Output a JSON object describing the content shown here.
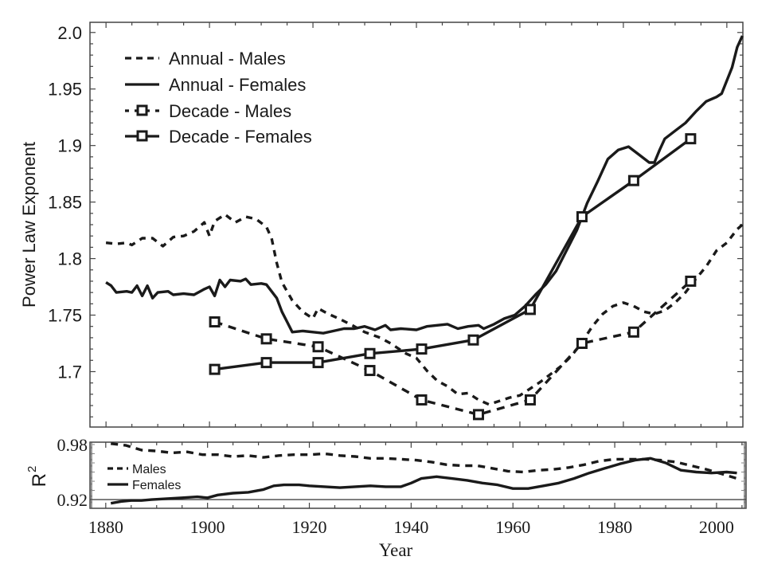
{
  "chart_data": [
    {
      "type": "line",
      "title": "",
      "xlabel": "",
      "ylabel": "Power Law Exponent",
      "xlim": [
        1876.9,
        2003.1
      ],
      "ylim": [
        1.651,
        2.009
      ],
      "xticks": [
        1880,
        1900,
        1920,
        1940,
        1960,
        1980,
        2000
      ],
      "yticks": [
        1.7,
        1.75,
        1.8,
        1.85,
        1.9,
        1.95,
        2.0
      ],
      "ytick_labels": [
        "1.7",
        "1.75",
        "1.8",
        "1.85",
        "1.9",
        "1.95",
        "2.0"
      ],
      "grid": false,
      "legend_position": "top-left",
      "series": [
        {
          "name": "Annual - Males",
          "style": "dashed",
          "marker": "none",
          "x": [
            1880,
            1882,
            1884,
            1885,
            1887,
            1889,
            1891,
            1893,
            1895,
            1897,
            1899,
            1900,
            1901,
            1903,
            1905,
            1907,
            1909,
            1911,
            1912,
            1913,
            1914,
            1916,
            1918,
            1920,
            1921,
            1923,
            1925,
            1928,
            1930,
            1933,
            1935,
            1938,
            1940,
            1942,
            1944,
            1946,
            1948,
            1950,
            1952,
            1954,
            1956,
            1958,
            1960,
            1962,
            1964,
            1966,
            1968,
            1970,
            1972,
            1974,
            1976,
            1978,
            1980,
            1982,
            1984,
            1986,
            1988,
            1990,
            1992,
            1994,
            1996,
            1998,
            2000,
            2002,
            2003
          ],
          "y": [
            1.814,
            1.813,
            1.814,
            1.812,
            1.818,
            1.818,
            1.811,
            1.819,
            1.82,
            1.824,
            1.832,
            1.82,
            1.833,
            1.839,
            1.832,
            1.837,
            1.835,
            1.828,
            1.818,
            1.796,
            1.779,
            1.763,
            1.753,
            1.747,
            1.756,
            1.751,
            1.747,
            1.74,
            1.735,
            1.73,
            1.725,
            1.716,
            1.712,
            1.701,
            1.692,
            1.687,
            1.68,
            1.681,
            1.675,
            1.671,
            1.674,
            1.677,
            1.679,
            1.685,
            1.691,
            1.698,
            1.705,
            1.714,
            1.726,
            1.74,
            1.751,
            1.758,
            1.761,
            1.758,
            1.753,
            1.751,
            1.754,
            1.761,
            1.77,
            1.782,
            1.793,
            1.807,
            1.814,
            1.826,
            1.83
          ]
        },
        {
          "name": "Annual - Females",
          "style": "solid",
          "marker": "none",
          "x": [
            1880,
            1881,
            1882,
            1884,
            1885,
            1886,
            1887,
            1888,
            1889,
            1890,
            1892,
            1893,
            1895,
            1897,
            1899,
            1900,
            1901,
            1902,
            1903,
            1904,
            1906,
            1907,
            1908,
            1910,
            1911,
            1912,
            1913,
            1914,
            1915,
            1916,
            1918,
            1920,
            1922,
            1924,
            1926,
            1928,
            1930,
            1932,
            1934,
            1935,
            1937,
            1940,
            1942,
            1944,
            1946,
            1948,
            1950,
            1952,
            1953,
            1955,
            1957,
            1959,
            1961,
            1963,
            1965,
            1967,
            1969,
            1971,
            1972,
            1973,
            1975,
            1977,
            1979,
            1981,
            1983,
            1985,
            1986,
            1987,
            1988,
            1990,
            1992,
            1994,
            1996,
            1998,
            1999,
            2001,
            2002,
            2003
          ],
          "y": [
            1.779,
            1.776,
            1.77,
            1.771,
            1.77,
            1.776,
            1.767,
            1.776,
            1.765,
            1.77,
            1.771,
            1.768,
            1.769,
            1.768,
            1.773,
            1.775,
            1.767,
            1.781,
            1.775,
            1.781,
            1.78,
            1.782,
            1.777,
            1.778,
            1.777,
            1.771,
            1.765,
            1.753,
            1.744,
            1.735,
            1.736,
            1.735,
            1.734,
            1.736,
            1.738,
            1.738,
            1.74,
            1.737,
            1.741,
            1.737,
            1.738,
            1.737,
            1.74,
            1.741,
            1.742,
            1.738,
            1.74,
            1.741,
            1.738,
            1.742,
            1.747,
            1.75,
            1.758,
            1.768,
            1.777,
            1.789,
            1.807,
            1.825,
            1.837,
            1.849,
            1.868,
            1.888,
            1.896,
            1.899,
            1.892,
            1.885,
            1.885,
            1.896,
            1.906,
            1.913,
            1.92,
            1.93,
            1.939,
            1.943,
            1.946,
            1.969,
            1.987,
            1.997
          ]
        },
        {
          "name": "Decade - Males",
          "style": "dashed",
          "marker": "square",
          "x": [
            1901,
            1911,
            1921,
            1931,
            1941,
            1952,
            1962,
            1972,
            1982,
            1993
          ],
          "y": [
            1.744,
            1.729,
            1.722,
            1.701,
            1.675,
            1.662,
            1.675,
            1.725,
            1.735,
            1.78
          ]
        },
        {
          "name": "Decade - Females",
          "style": "solid",
          "marker": "square",
          "x": [
            1901,
            1911,
            1921,
            1931,
            1941,
            1951,
            1962,
            1972,
            1982,
            1993
          ],
          "y": [
            1.702,
            1.708,
            1.708,
            1.716,
            1.72,
            1.728,
            1.755,
            1.837,
            1.869,
            1.906
          ]
        }
      ]
    },
    {
      "type": "line",
      "title": "",
      "xlabel": "Year",
      "ylabel": "R²",
      "ylabel_base": "R",
      "ylabel_sup": "2",
      "xlim": [
        1876.9,
        2005.8
      ],
      "ylim": [
        0.9105,
        0.9826
      ],
      "xticks": [
        1880,
        1900,
        1920,
        1940,
        1960,
        1980,
        2000
      ],
      "xtick_labels": [
        "1880",
        "1900",
        "1920",
        "1940",
        "1960",
        "1980",
        "2000"
      ],
      "yticks": [
        0.92,
        0.98
      ],
      "ytick_labels": [
        "0.92",
        "0.98"
      ],
      "reference_line": 0.92,
      "grid": false,
      "legend_position": "left",
      "series": [
        {
          "name": "Males",
          "style": "dashed",
          "x": [
            1881,
            1884,
            1887,
            1890,
            1893,
            1896,
            1899,
            1902,
            1905,
            1908,
            1911,
            1914,
            1917,
            1920,
            1923,
            1926,
            1929,
            1932,
            1935,
            1938,
            1941,
            1944,
            1947,
            1950,
            1953,
            1956,
            1959,
            1962,
            1965,
            1968,
            1971,
            1974,
            1977,
            1980,
            1983,
            1986,
            1989,
            1992,
            1995,
            1998,
            2001,
            2004
          ],
          "y": [
            0.981,
            0.979,
            0.974,
            0.973,
            0.971,
            0.972,
            0.969,
            0.969,
            0.967,
            0.968,
            0.966,
            0.968,
            0.969,
            0.969,
            0.97,
            0.968,
            0.967,
            0.965,
            0.965,
            0.964,
            0.963,
            0.961,
            0.958,
            0.957,
            0.957,
            0.954,
            0.951,
            0.95,
            0.952,
            0.953,
            0.955,
            0.958,
            0.962,
            0.964,
            0.964,
            0.964,
            0.963,
            0.961,
            0.957,
            0.953,
            0.948,
            0.943
          ]
        },
        {
          "name": "Females",
          "style": "solid",
          "x": [
            1881,
            1883,
            1885,
            1887,
            1889,
            1892,
            1895,
            1898,
            1900,
            1902,
            1905,
            1908,
            1911,
            1913,
            1915,
            1918,
            1920,
            1923,
            1926,
            1929,
            1932,
            1935,
            1938,
            1940,
            1942,
            1945,
            1948,
            1951,
            1954,
            1957,
            1960,
            1963,
            1966,
            1969,
            1972,
            1975,
            1978,
            1981,
            1984,
            1987,
            1990,
            1993,
            1996,
            1999,
            2002,
            2004
          ],
          "y": [
            0.916,
            0.918,
            0.919,
            0.919,
            0.92,
            0.921,
            0.922,
            0.923,
            0.922,
            0.925,
            0.927,
            0.928,
            0.931,
            0.935,
            0.936,
            0.936,
            0.935,
            0.934,
            0.933,
            0.934,
            0.935,
            0.934,
            0.934,
            0.938,
            0.943,
            0.945,
            0.943,
            0.941,
            0.938,
            0.936,
            0.932,
            0.932,
            0.935,
            0.938,
            0.943,
            0.949,
            0.954,
            0.959,
            0.963,
            0.965,
            0.96,
            0.952,
            0.95,
            0.949,
            0.95,
            0.949
          ]
        }
      ]
    }
  ],
  "legends": {
    "top": [
      "Annual - Males",
      "Annual - Females",
      "Decade - Males",
      "Decade - Females"
    ],
    "bottom": [
      "Males",
      "Females"
    ]
  },
  "colors": {
    "line": "#1a1a1a",
    "frame": "#444444",
    "background": "#ffffff"
  }
}
